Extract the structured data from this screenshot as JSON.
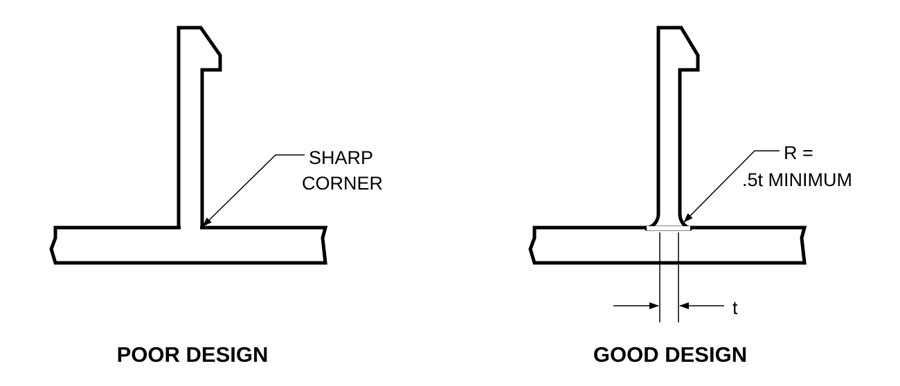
{
  "poor": {
    "callout": [
      "SHARP",
      "CORNER"
    ],
    "caption": "POOR DESIGN"
  },
  "good": {
    "callout": [
      "R =",
      ".5t MINIMUM"
    ],
    "dimension_label": "t",
    "caption": "GOOD DESIGN"
  }
}
